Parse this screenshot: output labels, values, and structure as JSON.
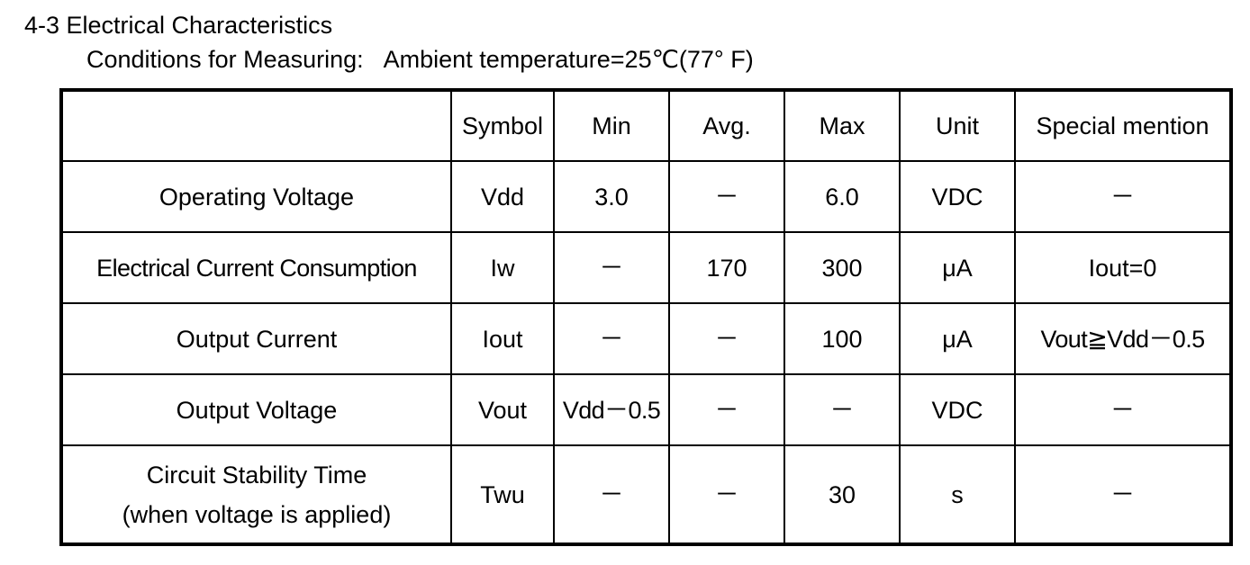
{
  "section_title": "4-3 Electrical Characteristics",
  "conditions": {
    "label": "Conditions for Measuring:",
    "value": "Ambient temperature=25℃(77° F)"
  },
  "table": {
    "headers": [
      "",
      "Symbol",
      "Min",
      "Avg.",
      "Max",
      "Unit",
      "Special mention"
    ],
    "rows": [
      {
        "parameter": "Operating Voltage",
        "parameter_line2": "",
        "symbol": "Vdd",
        "min": "3.0",
        "avg": "－",
        "max": "6.0",
        "unit": "VDC",
        "special": "－"
      },
      {
        "parameter": "Electrical Current Consumption",
        "parameter_line2": "",
        "symbol": "Iw",
        "min": "－",
        "avg": "170",
        "max": "300",
        "unit": "μA",
        "special": "Iout=0"
      },
      {
        "parameter": "Output Current",
        "parameter_line2": "",
        "symbol": "Iout",
        "min": "－",
        "avg": "－",
        "max": "100",
        "unit": "μA",
        "special": "Vout≧Vdd－0.5"
      },
      {
        "parameter": "Output Voltage",
        "parameter_line2": "",
        "symbol": "Vout",
        "min": "Vdd－0.5",
        "avg": "－",
        "max": "－",
        "unit": "VDC",
        "special": "－"
      },
      {
        "parameter": "Circuit Stability Time",
        "parameter_line2": "(when voltage is applied)",
        "symbol": "Twu",
        "min": "－",
        "avg": "－",
        "max": "30",
        "unit": "s",
        "special": "－"
      }
    ]
  }
}
